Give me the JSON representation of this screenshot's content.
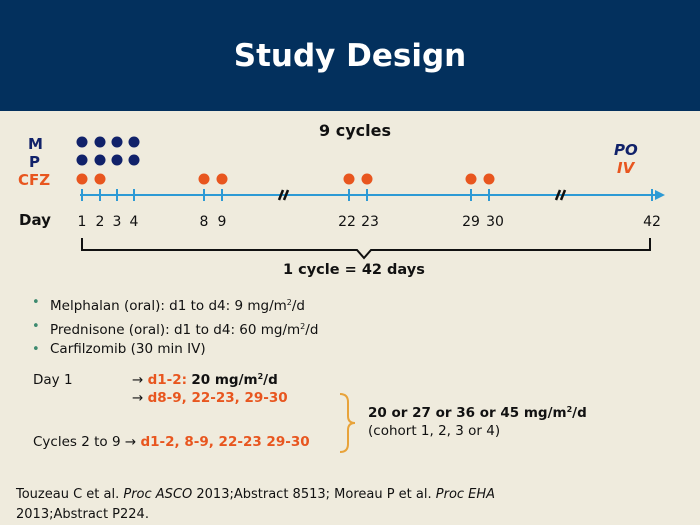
{
  "header": {
    "title": "Study Design"
  },
  "timeline": {
    "cycles_label": "9 cycles",
    "row_labels": {
      "m": "M",
      "p": "P",
      "cfz": "CFZ"
    },
    "route_labels": {
      "po": "PO",
      "iv": "IV"
    },
    "day_label": "Day",
    "day_ticks": [
      "1",
      "2",
      "3",
      "4",
      "8",
      "9",
      "22",
      "23",
      "29",
      "30",
      "42"
    ],
    "cycle_brace_label": "1 cycle = 42 days",
    "m_days": [
      1,
      2,
      3,
      4
    ],
    "p_days": [
      1,
      2,
      3,
      4
    ],
    "cfz_days": [
      1,
      2,
      8,
      9,
      22,
      23,
      29,
      30
    ],
    "colors": {
      "navy": "#11226a",
      "orange": "#e8561f",
      "axis": "#2d9ad5"
    }
  },
  "bullets": [
    {
      "pre": "Melphalan (oral): d1 to d4: 9 mg/m",
      "sup": "2",
      "post": "/d"
    },
    {
      "pre": "Prednisone (oral): d1 to d4: 60 mg/m",
      "sup": "2",
      "post": "/d"
    },
    {
      "pre": "Carfilzomib (30 min IV)",
      "sup": "",
      "post": ""
    }
  ],
  "dosing": {
    "day1_label": "Day 1",
    "arrow": "→",
    "d12_label": "d1-2:",
    "d12_dose_pre": "20 mg/m",
    "d12_dose_sup": "2",
    "d12_dose_post": "/d",
    "d8_label": "d8-9, 22-23, 29-30",
    "cycles_label": "Cycles 2 to 9",
    "cycles_days": "d1-2, 8-9, 22-23 29-30",
    "cohort_dose_pre": "20 or 27 or 36 or 45 mg/m",
    "cohort_dose_sup": "2",
    "cohort_dose_post": "/d",
    "cohort_note": "(cohort 1, 2, 3 or 4)"
  },
  "footer": {
    "line1_pre": "Touzeau C et al. ",
    "line1_italic1": "Proc ASCO",
    "line1_mid": " 2013;Abstract 8513; Moreau P et al. ",
    "line1_italic2": "Proc EHA",
    "line2": "2013;Abstract P224."
  }
}
